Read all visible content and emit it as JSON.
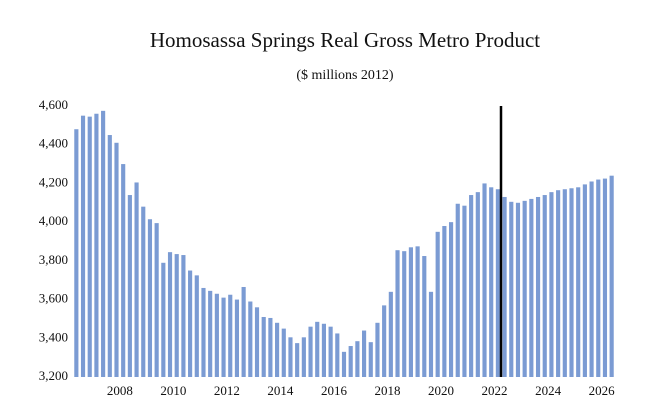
{
  "chart_data": {
    "type": "bar",
    "title": "Homosassa Springs Real Gross Metro Product",
    "subtitle": "($ millions 2012)",
    "categories": [
      null,
      null,
      null,
      null,
      null,
      null,
      null,
      "2008",
      null,
      null,
      null,
      null,
      null,
      null,
      null,
      "2010",
      null,
      null,
      null,
      null,
      null,
      null,
      null,
      "2012",
      null,
      null,
      null,
      null,
      null,
      null,
      null,
      "2014",
      null,
      null,
      null,
      null,
      null,
      null,
      null,
      "2016",
      null,
      null,
      null,
      null,
      null,
      null,
      null,
      "2018",
      null,
      null,
      null,
      null,
      null,
      null,
      null,
      "2020",
      null,
      null,
      null,
      null,
      null,
      null,
      null,
      "2022",
      null,
      null,
      null,
      null,
      null,
      null,
      null,
      "2024",
      null,
      null,
      null,
      null,
      null,
      null,
      null,
      "2026",
      null
    ],
    "values": [
      4480,
      4550,
      4545,
      4560,
      4575,
      4450,
      4410,
      4300,
      4140,
      4205,
      4080,
      4015,
      3995,
      3790,
      3845,
      3835,
      3830,
      3750,
      3725,
      3660,
      3645,
      3630,
      3610,
      3625,
      3600,
      3665,
      3590,
      3560,
      3510,
      3505,
      3480,
      3450,
      3405,
      3375,
      3405,
      3460,
      3485,
      3475,
      3460,
      3425,
      3330,
      3360,
      3385,
      3440,
      3380,
      3480,
      3570,
      3640,
      3855,
      3850,
      3870,
      3875,
      3825,
      3640,
      3950,
      3980,
      4000,
      4095,
      4085,
      4140,
      4155,
      4200,
      4180,
      4170,
      4130,
      4105,
      4100,
      4110,
      4120,
      4130,
      4140,
      4155,
      4165,
      4170,
      4175,
      4180,
      4195,
      4210,
      4220,
      4225,
      4240
    ],
    "color": "#7b9bd3",
    "ylim": [
      3200,
      4600
    ],
    "yticks": [
      {
        "value": 3200,
        "label": "3,200"
      },
      {
        "value": 3400,
        "label": "3,400"
      },
      {
        "value": 3600,
        "label": "3,600"
      },
      {
        "value": 3800,
        "label": "3,800"
      },
      {
        "value": 4000,
        "label": "4,000"
      },
      {
        "value": 4200,
        "label": "4,200"
      },
      {
        "value": 4400,
        "label": "4,400"
      },
      {
        "value": 4600,
        "label": "4,600"
      }
    ],
    "grid": false
  }
}
